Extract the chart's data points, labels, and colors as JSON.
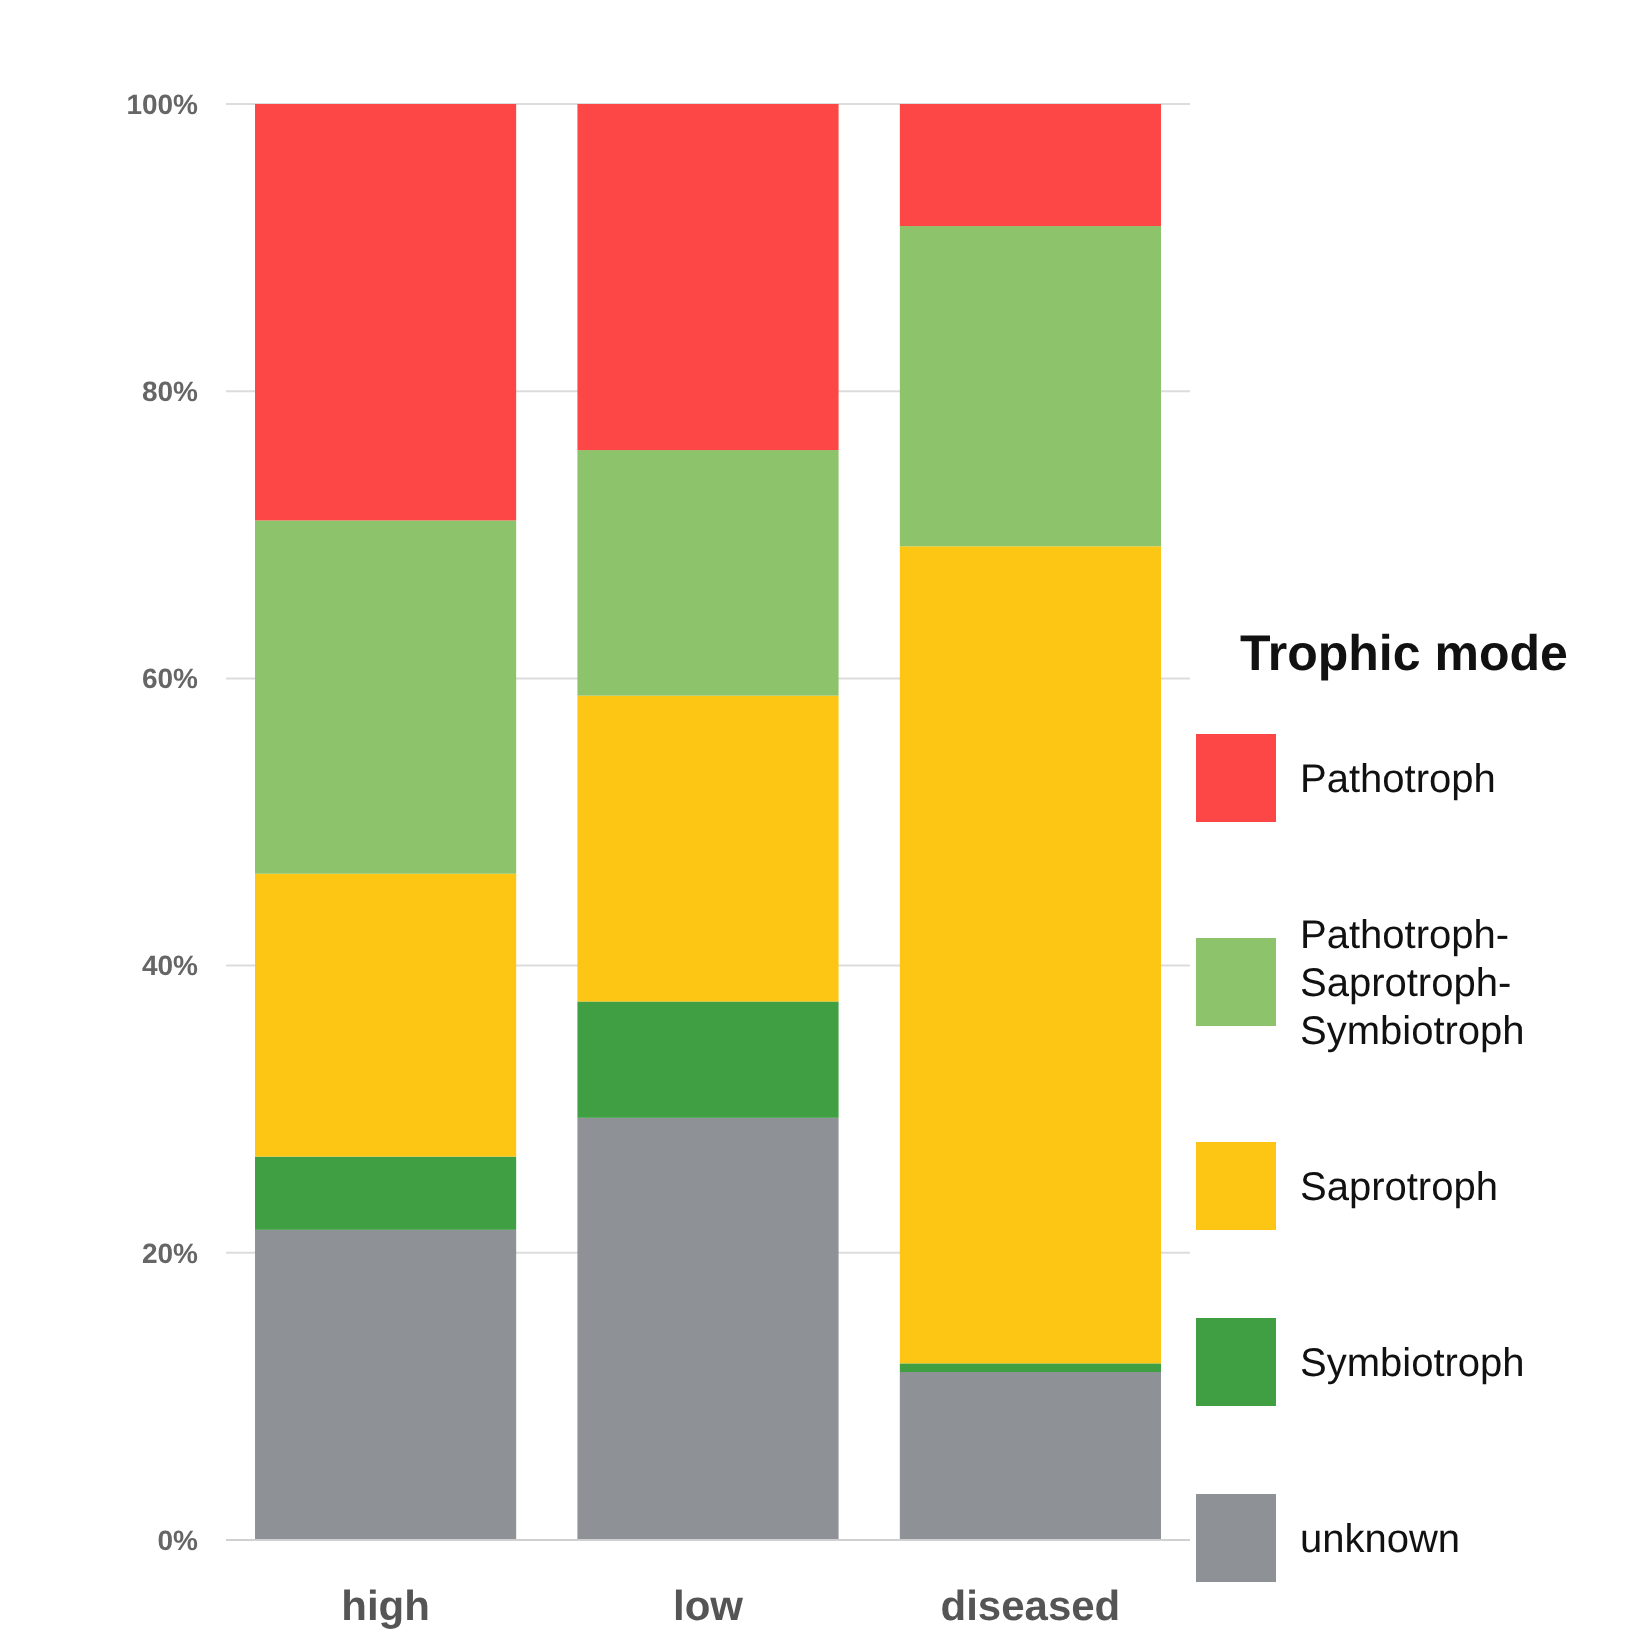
{
  "chart_data": {
    "type": "bar",
    "stacked": true,
    "categories": [
      "high",
      "low",
      "diseased"
    ],
    "series": [
      {
        "name": "unknown",
        "color": "#8e9196",
        "values": [
          21.6,
          29.4,
          11.7
        ]
      },
      {
        "name": "Symbiotroph",
        "color": "#3f9f42",
        "values": [
          5.1,
          8.1,
          0.6
        ]
      },
      {
        "name": "Saprotroph",
        "color": "#fec614",
        "values": [
          19.7,
          21.3,
          56.9
        ]
      },
      {
        "name": "Pathotroph-Saprotroph-Symbiotroph",
        "color": "#8dc36a",
        "values": [
          24.6,
          17.1,
          22.3
        ]
      },
      {
        "name": "Pathotroph",
        "color": "#fd4646",
        "values": [
          29.0,
          24.1,
          8.5
        ]
      }
    ],
    "ylim": [
      0,
      100
    ],
    "yticks": [
      {
        "value": 0,
        "label": "0%"
      },
      {
        "value": 20,
        "label": "20%"
      },
      {
        "value": 40,
        "label": "40%"
      },
      {
        "value": 60,
        "label": "60%"
      },
      {
        "value": 80,
        "label": "80%"
      },
      {
        "value": 100,
        "label": "100%"
      }
    ],
    "grid": "y",
    "legend": "right",
    "legend_title": "Trophic mode"
  }
}
